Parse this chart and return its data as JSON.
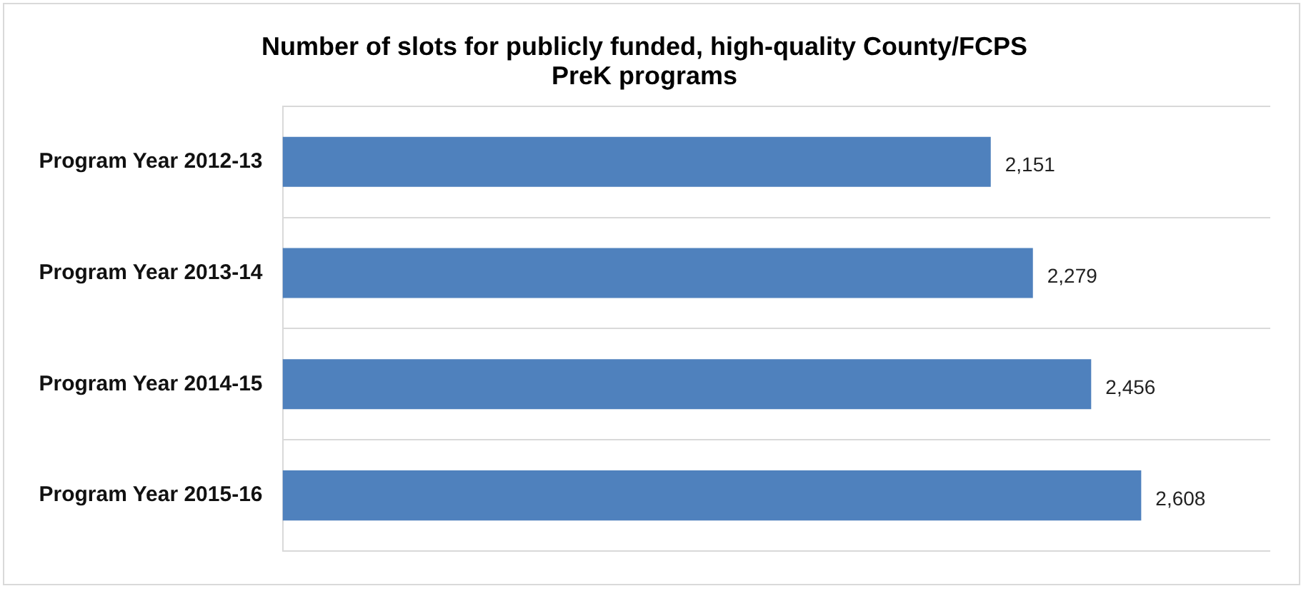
{
  "chart_data": {
    "type": "bar",
    "orientation": "horizontal",
    "title": "Number of slots for publicly funded, high-quality County/FCPS\nPreK programs",
    "categories": [
      "Program Year 2012-13",
      "Program Year 2013-14",
      "Program Year 2014-15",
      "Program Year 2015-16"
    ],
    "values": [
      2151,
      2279,
      2456,
      2608
    ],
    "color": "#4f81bd",
    "data_labels": true,
    "value_labels": [
      "2,151",
      "2,279",
      "2,456",
      "2,608"
    ],
    "xlim": [
      0,
      3000
    ],
    "grid": "y",
    "tick_labels": "y",
    "legend": false
  }
}
